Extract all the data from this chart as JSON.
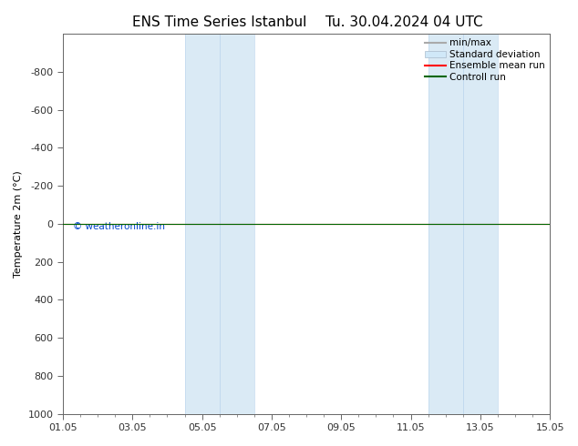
{
  "title_left": "ENS Time Series Istanbul",
  "title_right": "Tu. 30.04.2024 04 UTC",
  "ylabel": "Temperature 2m (°C)",
  "xtick_labels": [
    "01.05",
    "03.05",
    "05.05",
    "07.05",
    "09.05",
    "11.05",
    "13.05",
    "15.05"
  ],
  "xtick_positions": [
    0,
    2,
    4,
    6,
    8,
    10,
    12,
    14
  ],
  "ylim_min": -1000,
  "ylim_max": 1000,
  "ytick_positions": [
    -800,
    -600,
    -400,
    -200,
    0,
    200,
    400,
    600,
    800,
    1000
  ],
  "ytick_labels": [
    "-800",
    "-600",
    "-400",
    "-200",
    "0",
    "200",
    "400",
    "600",
    "800",
    "1000"
  ],
  "shaded_bands": [
    {
      "x_start": 3.5,
      "x_end": 4.5
    },
    {
      "x_start": 4.5,
      "x_end": 5.5
    },
    {
      "x_start": 10.5,
      "x_end": 11.5
    },
    {
      "x_start": 11.5,
      "x_end": 12.5
    }
  ],
  "shade_color": "#daeaf5",
  "shade_border_color": "#c0d8ee",
  "horizontal_line_y": 0,
  "line_color_ensemble": "#ff0000",
  "line_color_control": "#006600",
  "watermark": "© weatheronline.in",
  "watermark_color": "#0044cc",
  "legend_entries": [
    "min/max",
    "Standard deviation",
    "Ensemble mean run",
    "Controll run"
  ],
  "legend_line_color": "#aaaaaa",
  "legend_box_color": "#d0e8f8",
  "legend_ensemble_color": "#ff0000",
  "legend_control_color": "#006600",
  "background_color": "#ffffff",
  "spine_color": "#666666",
  "tick_color": "#333333",
  "label_fontsize": 8,
  "title_fontsize": 11,
  "xlim_min": 0,
  "xlim_max": 14
}
